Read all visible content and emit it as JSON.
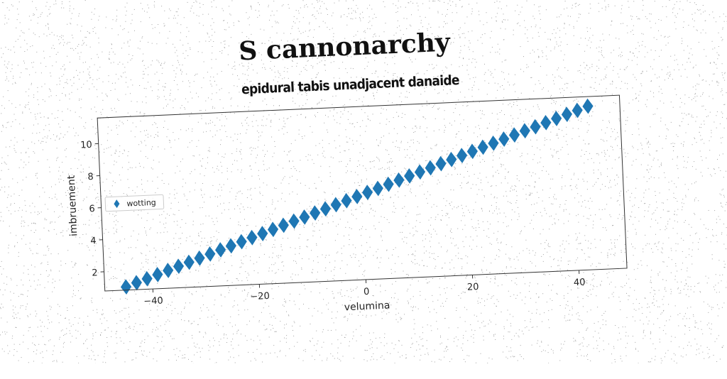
{
  "chart_data": {
    "type": "scatter",
    "title": "S cannonarchy",
    "subtitle": "epidural tabis unadjacent danaide",
    "xlabel": "velumina",
    "ylabel": "imbruement",
    "xlim": [
      -49,
      49
    ],
    "ylim": [
      0.8,
      11.6
    ],
    "xticks": [
      -40,
      -20,
      0,
      20,
      40
    ],
    "yticks": [
      2,
      4,
      6,
      8,
      10
    ],
    "grid": false,
    "legend_position": "center-left",
    "series": [
      {
        "name": "wotting",
        "color": "#1f77b4",
        "marker": "diamond",
        "x": [
          -45,
          -43,
          -41,
          -39,
          -37,
          -35,
          -33,
          -31,
          -29,
          -27,
          -25,
          -23,
          -21,
          -19,
          -17,
          -15,
          -13,
          -11,
          -9,
          -7,
          -5,
          -3,
          -1,
          1,
          3,
          5,
          7,
          9,
          11,
          13,
          15,
          17,
          19,
          21,
          23,
          25,
          27,
          29,
          31,
          33,
          35,
          37,
          39,
          41,
          43
        ],
        "y": [
          1.0,
          1.23,
          1.45,
          1.68,
          1.91,
          2.14,
          2.36,
          2.59,
          2.82,
          3.05,
          3.27,
          3.5,
          3.73,
          3.95,
          4.18,
          4.41,
          4.64,
          4.86,
          5.09,
          5.32,
          5.55,
          5.77,
          6.0,
          6.23,
          6.45,
          6.68,
          6.91,
          7.14,
          7.36,
          7.59,
          7.82,
          8.05,
          8.27,
          8.5,
          8.73,
          8.95,
          9.18,
          9.41,
          9.64,
          9.86,
          10.09,
          10.32,
          10.55,
          10.77,
          11.0
        ]
      }
    ]
  }
}
